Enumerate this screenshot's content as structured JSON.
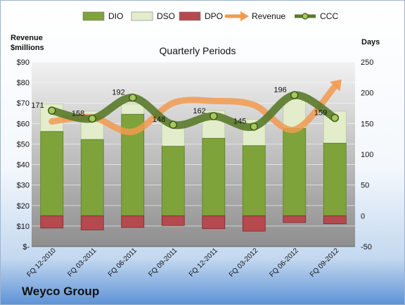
{
  "company": "Weyco Group",
  "chart_data": {
    "type": "combo",
    "title": "Quarterly Periods",
    "left_axis": {
      "label": "Revenue\n$millions",
      "ylim": [
        0,
        90
      ],
      "ticks": [
        0,
        10,
        20,
        30,
        40,
        50,
        60,
        70,
        80,
        90
      ],
      "tick_labels": [
        "$-",
        "$10",
        "$20",
        "$30",
        "$40",
        "$50",
        "$60",
        "$70",
        "$80",
        "$90"
      ]
    },
    "right_axis": {
      "label": "Days",
      "ylim": [
        -50,
        250
      ],
      "ticks": [
        -50,
        0,
        50,
        100,
        150,
        200,
        250
      ]
    },
    "categories": [
      "FQ 12-2010",
      "FQ 03-2011",
      "FQ 06-2011",
      "FQ 09-2011",
      "FQ 12-2011",
      "FQ 03-2012",
      "FQ 06-2012",
      "FQ 09-2012"
    ],
    "legend": [
      "DIO",
      "DSO",
      "DPO",
      "Revenue",
      "CCC"
    ],
    "legend_position": "top",
    "grid": true,
    "series": [
      {
        "name": "DIO",
        "axis": "right",
        "kind": "stacked-bar",
        "color": "#7ea33a",
        "values": [
          137,
          124,
          165,
          113,
          126,
          114,
          142,
          118
        ]
      },
      {
        "name": "DSO",
        "axis": "right",
        "kind": "stacked-bar",
        "color": "#e3edcc",
        "values": [
          45,
          46,
          17,
          40,
          45,
          43,
          48,
          52
        ]
      },
      {
        "name": "DPO",
        "axis": "right",
        "kind": "bar-below-zero",
        "color": "#b44a4e",
        "values": [
          -20,
          -23,
          -19,
          -16,
          -21,
          -25,
          -11,
          -13
        ]
      },
      {
        "name": "Revenue",
        "axis": "left",
        "kind": "line",
        "color": "#f29a4f",
        "values": [
          61,
          63,
          56,
          70,
          71,
          69,
          57,
          78
        ]
      },
      {
        "name": "CCC",
        "axis": "right",
        "kind": "line",
        "color": "#5a7a2b",
        "values": [
          171,
          158,
          192,
          148,
          162,
          145,
          196,
          159
        ],
        "labels": [
          "171",
          "158",
          "192",
          "148",
          "162",
          "145",
          "196",
          "159"
        ]
      }
    ]
  }
}
